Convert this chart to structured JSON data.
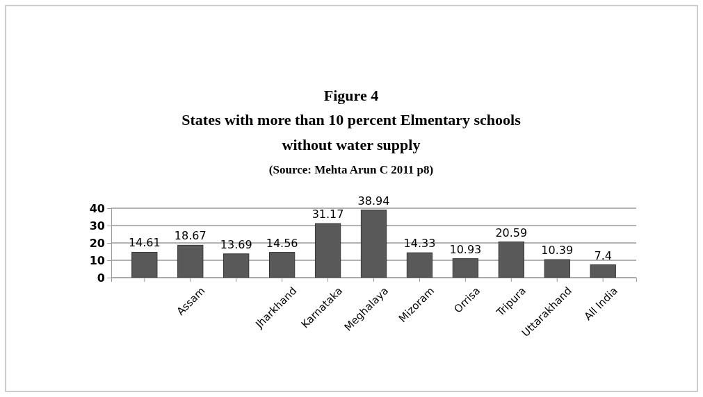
{
  "chart_data": {
    "type": "bar",
    "title": "Figure 4",
    "subtitle": "States with more than 10 percent Elmentary schools\nwithout water supply",
    "annotations": [
      "(Source: Mehta Arun C 2011 p8)"
    ],
    "categories": [
      null,
      "Assam",
      null,
      "Jharkhand",
      "Karnataka",
      "Meghalaya",
      "Mizoram",
      "Orrisa",
      "Tripura",
      "Uttarakhand",
      "All India"
    ],
    "values": [
      14.61,
      18.67,
      13.69,
      14.56,
      31.17,
      38.94,
      14.33,
      10.93,
      20.59,
      10.39,
      7.4
    ],
    "color": "#595959",
    "ylim": [
      0,
      40
    ],
    "yticks": [
      0,
      10,
      20,
      30,
      40
    ],
    "grid": "y",
    "data_labels": true
  }
}
